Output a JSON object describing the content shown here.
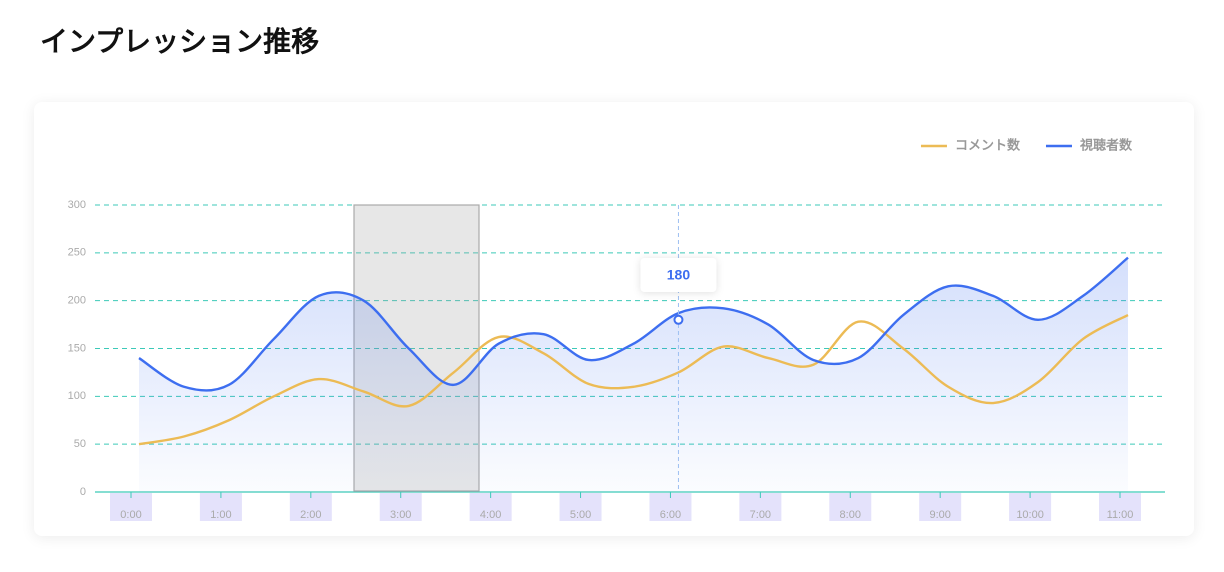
{
  "chart_data": {
    "type": "line",
    "title": "インプレッション推移",
    "x": [
      0,
      0.5,
      1,
      1.5,
      2,
      2.5,
      3,
      3.5,
      4,
      4.5,
      5,
      5.5,
      6,
      6.5,
      7,
      7.5,
      8,
      8.5,
      9,
      9.5,
      10,
      10.5,
      11
    ],
    "series": [
      {
        "name": "コメント数",
        "color": "#ecbb55",
        "values": [
          50,
          58,
          75,
          100,
          118,
          105,
          90,
          125,
          162,
          145,
          113,
          110,
          125,
          152,
          140,
          133,
          178,
          150,
          110,
          93,
          115,
          160,
          185
        ]
      },
      {
        "name": "視聴者数",
        "color": "#3d6ef0",
        "values": [
          140,
          110,
          112,
          160,
          205,
          200,
          150,
          112,
          155,
          165,
          138,
          155,
          187,
          192,
          175,
          138,
          140,
          185,
          215,
          205,
          180,
          205,
          245
        ]
      }
    ],
    "xlim": [
      0,
      11
    ],
    "xticks": [
      {
        "value": 0,
        "label": "0:00"
      },
      {
        "value": 1,
        "label": "1:00"
      },
      {
        "value": 2,
        "label": "2:00"
      },
      {
        "value": 3,
        "label": "3:00"
      },
      {
        "value": 4,
        "label": "4:00"
      },
      {
        "value": 5,
        "label": "5:00"
      },
      {
        "value": 6,
        "label": "6:00"
      },
      {
        "value": 7,
        "label": "7:00"
      },
      {
        "value": 8,
        "label": "8:00"
      },
      {
        "value": 9,
        "label": "9:00"
      },
      {
        "value": 10,
        "label": "10:00"
      },
      {
        "value": 11,
        "label": "11:00"
      }
    ],
    "ylim": [
      0,
      300
    ],
    "yticks": [
      0,
      50,
      100,
      150,
      200,
      250,
      300
    ],
    "grid": true,
    "legend": "top-right",
    "tooltip": {
      "x": 6,
      "value": 180
    }
  }
}
